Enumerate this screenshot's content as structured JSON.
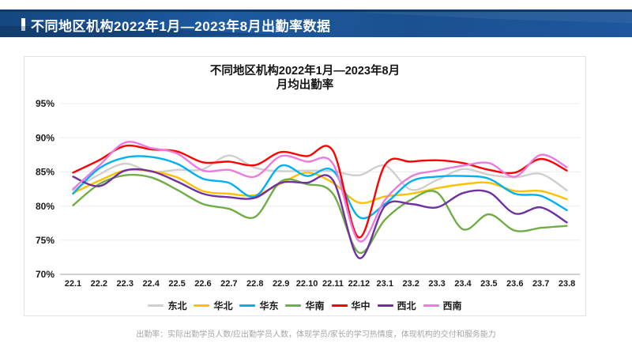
{
  "banner": {
    "title": "不同地区机构2022年1月—2023年8月出勤率数据",
    "bg_color": "#1d5aa0",
    "top_edge_color": "#0e3a6b",
    "marker_color": "#ffffff"
  },
  "chart_data": {
    "type": "line",
    "title_line1": "不同地区机构2022年1月—2023年8月",
    "title_line2": "月均出勤率",
    "categories": [
      "22.1",
      "22.2",
      "22.3",
      "22.4",
      "22.5",
      "22.6",
      "22.7",
      "22.8",
      "22.9",
      "22.10",
      "22.11",
      "22.12",
      "23.1",
      "23.2",
      "23.3",
      "23.4",
      "23.5",
      "23.6",
      "23.7",
      "23.8"
    ],
    "series": [
      {
        "name": "东北",
        "color": "#d0cece",
        "values": [
          82.3,
          84.6,
          86.2,
          85.0,
          85.3,
          85.4,
          87.4,
          85.6,
          85.1,
          85.2,
          85.1,
          84.5,
          85.9,
          82.4,
          83.8,
          85.4,
          84.6,
          84.2,
          84.7,
          82.3
        ]
      },
      {
        "name": "华北",
        "color": "#ffc000",
        "values": [
          81.9,
          83.7,
          85.2,
          85.1,
          84.2,
          82.2,
          81.8,
          81.6,
          83.3,
          84.9,
          83.4,
          80.5,
          81.4,
          81.8,
          82.6,
          83.2,
          83.4,
          82.2,
          82.2,
          81.0
        ]
      },
      {
        "name": "华东",
        "color": "#00b0f0",
        "values": [
          81.8,
          85.5,
          87.1,
          87.2,
          86.2,
          84.0,
          83.4,
          81.4,
          85.9,
          84.4,
          85.2,
          78.4,
          80.3,
          83.6,
          84.3,
          84.4,
          84.0,
          81.8,
          81.5,
          79.4
        ]
      },
      {
        "name": "华南",
        "color": "#70ad47",
        "values": [
          80.1,
          83.2,
          84.5,
          84.2,
          82.4,
          80.3,
          79.6,
          78.4,
          83.6,
          83.2,
          81.8,
          73.2,
          78.0,
          80.9,
          82.0,
          76.6,
          78.8,
          76.4,
          76.8,
          77.1
        ]
      },
      {
        "name": "华中",
        "color": "#ff0000",
        "values": [
          84.9,
          86.7,
          88.8,
          88.3,
          88.0,
          86.4,
          86.5,
          86.0,
          87.9,
          87.3,
          88.1,
          75.4,
          86.0,
          86.5,
          86.7,
          86.3,
          85.3,
          84.9,
          86.9,
          85.2
        ]
      },
      {
        "name": "西北",
        "color": "#7030a0",
        "values": [
          84.3,
          82.9,
          85.2,
          85.1,
          83.6,
          81.8,
          81.3,
          81.2,
          83.4,
          83.4,
          83.8,
          72.4,
          80.0,
          80.3,
          79.8,
          81.9,
          82.0,
          78.9,
          79.8,
          77.6
        ]
      },
      {
        "name": "西南",
        "color": "#e97ce1",
        "values": [
          82.5,
          85.9,
          89.3,
          88.5,
          87.7,
          85.2,
          85.3,
          84.3,
          87.3,
          86.5,
          86.2,
          74.9,
          80.9,
          84.3,
          85.2,
          85.9,
          86.3,
          84.3,
          87.5,
          85.7
        ]
      }
    ],
    "ylim": [
      70,
      95
    ],
    "ytick_step": 5,
    "ytick_labels": [
      "70%",
      "75%",
      "80%",
      "85%",
      "90%",
      "95%"
    ],
    "grid": true,
    "legend_position": "bottom",
    "grid_color": "#ececec",
    "axis_color": "#c0c0c0"
  },
  "footnote": {
    "text": "出勤率：实际出勤学员人数/应出勤学员人数，体现学员/家长的学习热情度，体现机构的交付和服务能力"
  }
}
